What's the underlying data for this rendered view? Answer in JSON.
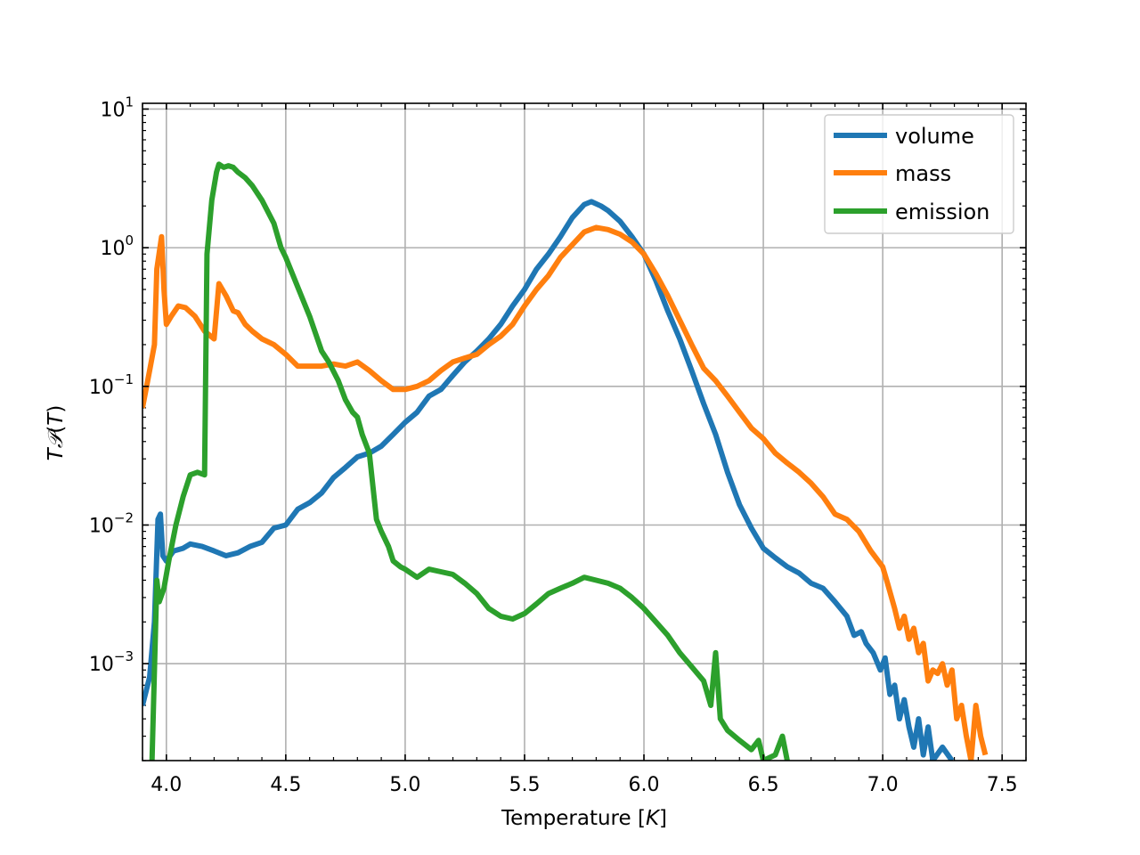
{
  "chart_data": {
    "type": "line",
    "title": "",
    "xlabel_main": "Temperature [",
    "xlabel_var": "K",
    "xlabel_end": "]",
    "ylabel_var1": "T",
    "ylabel_var2": "𝒫",
    "ylabel_paren_open": "(",
    "ylabel_var3": "T",
    "ylabel_paren_close": ")",
    "xlim": [
      3.9,
      7.6
    ],
    "ylim": [
      0.0002,
      11
    ],
    "yscale": "log",
    "grid": true,
    "legend_position": "top-right",
    "x_ticks": [
      {
        "value": 4.0,
        "label": "4.0"
      },
      {
        "value": 4.5,
        "label": "4.5"
      },
      {
        "value": 5.0,
        "label": "5.0"
      },
      {
        "value": 5.5,
        "label": "5.5"
      },
      {
        "value": 6.0,
        "label": "6.0"
      },
      {
        "value": 6.5,
        "label": "6.5"
      },
      {
        "value": 7.0,
        "label": "7.0"
      },
      {
        "value": 7.5,
        "label": "7.5"
      }
    ],
    "y_ticks": [
      {
        "value": 10,
        "base": "10",
        "exp": "1"
      },
      {
        "value": 1,
        "base": "10",
        "exp": "0"
      },
      {
        "value": 0.1,
        "base": "10",
        "exp": "−1"
      },
      {
        "value": 0.01,
        "base": "10",
        "exp": "−2"
      },
      {
        "value": 0.001,
        "base": "10",
        "exp": "−3"
      }
    ],
    "series": [
      {
        "name": "volume",
        "color": "#1f77b4",
        "points": [
          [
            3.9,
            0.0005
          ],
          [
            3.93,
            0.0008
          ],
          [
            3.95,
            0.002
          ],
          [
            3.965,
            0.011
          ],
          [
            3.975,
            0.012
          ],
          [
            3.985,
            0.006
          ],
          [
            4.0,
            0.0055
          ],
          [
            4.03,
            0.0065
          ],
          [
            4.07,
            0.0068
          ],
          [
            4.1,
            0.0073
          ],
          [
            4.15,
            0.007
          ],
          [
            4.2,
            0.0065
          ],
          [
            4.25,
            0.006
          ],
          [
            4.3,
            0.0063
          ],
          [
            4.35,
            0.007
          ],
          [
            4.4,
            0.0075
          ],
          [
            4.45,
            0.0095
          ],
          [
            4.5,
            0.01
          ],
          [
            4.55,
            0.013
          ],
          [
            4.6,
            0.0145
          ],
          [
            4.65,
            0.017
          ],
          [
            4.7,
            0.022
          ],
          [
            4.75,
            0.026
          ],
          [
            4.8,
            0.031
          ],
          [
            4.85,
            0.033
          ],
          [
            4.9,
            0.037
          ],
          [
            4.95,
            0.045
          ],
          [
            5.0,
            0.055
          ],
          [
            5.05,
            0.065
          ],
          [
            5.1,
            0.085
          ],
          [
            5.15,
            0.095
          ],
          [
            5.2,
            0.12
          ],
          [
            5.25,
            0.15
          ],
          [
            5.3,
            0.18
          ],
          [
            5.35,
            0.22
          ],
          [
            5.4,
            0.28
          ],
          [
            5.45,
            0.38
          ],
          [
            5.5,
            0.5
          ],
          [
            5.55,
            0.7
          ],
          [
            5.6,
            0.9
          ],
          [
            5.65,
            1.2
          ],
          [
            5.7,
            1.65
          ],
          [
            5.75,
            2.05
          ],
          [
            5.78,
            2.15
          ],
          [
            5.82,
            2.0
          ],
          [
            5.85,
            1.85
          ],
          [
            5.9,
            1.55
          ],
          [
            5.95,
            1.2
          ],
          [
            6.0,
            0.9
          ],
          [
            6.05,
            0.58
          ],
          [
            6.1,
            0.35
          ],
          [
            6.15,
            0.22
          ],
          [
            6.2,
            0.13
          ],
          [
            6.25,
            0.075
          ],
          [
            6.3,
            0.045
          ],
          [
            6.35,
            0.024
          ],
          [
            6.4,
            0.014
          ],
          [
            6.45,
            0.0095
          ],
          [
            6.5,
            0.0068
          ],
          [
            6.55,
            0.0058
          ],
          [
            6.6,
            0.005
          ],
          [
            6.65,
            0.0045
          ],
          [
            6.7,
            0.0038
          ],
          [
            6.75,
            0.0035
          ],
          [
            6.8,
            0.0028
          ],
          [
            6.85,
            0.0022
          ],
          [
            6.88,
            0.0016
          ],
          [
            6.91,
            0.0017
          ],
          [
            6.93,
            0.0014
          ],
          [
            6.96,
            0.0012
          ],
          [
            6.99,
            0.0009
          ],
          [
            7.01,
            0.0011
          ],
          [
            7.03,
            0.0006
          ],
          [
            7.05,
            0.0007
          ],
          [
            7.07,
            0.0004
          ],
          [
            7.09,
            0.00055
          ],
          [
            7.11,
            0.00035
          ],
          [
            7.13,
            0.00025
          ],
          [
            7.15,
            0.0004
          ],
          [
            7.17,
            0.00022
          ],
          [
            7.19,
            0.00035
          ],
          [
            7.21,
            0.0002
          ],
          [
            7.25,
            0.00025
          ],
          [
            7.29,
            0.0002
          ]
        ]
      },
      {
        "name": "mass",
        "color": "#ff7f0e",
        "points": [
          [
            3.9,
            0.07
          ],
          [
            3.93,
            0.13
          ],
          [
            3.95,
            0.2
          ],
          [
            3.96,
            0.7
          ],
          [
            3.98,
            1.2
          ],
          [
            3.99,
            0.5
          ],
          [
            4.0,
            0.28
          ],
          [
            4.02,
            0.32
          ],
          [
            4.05,
            0.38
          ],
          [
            4.08,
            0.37
          ],
          [
            4.12,
            0.32
          ],
          [
            4.16,
            0.25
          ],
          [
            4.2,
            0.22
          ],
          [
            4.22,
            0.55
          ],
          [
            4.25,
            0.45
          ],
          [
            4.28,
            0.35
          ],
          [
            4.3,
            0.34
          ],
          [
            4.33,
            0.28
          ],
          [
            4.36,
            0.25
          ],
          [
            4.4,
            0.22
          ],
          [
            4.45,
            0.2
          ],
          [
            4.5,
            0.17
          ],
          [
            4.55,
            0.14
          ],
          [
            4.6,
            0.14
          ],
          [
            4.65,
            0.14
          ],
          [
            4.7,
            0.145
          ],
          [
            4.75,
            0.14
          ],
          [
            4.8,
            0.15
          ],
          [
            4.85,
            0.13
          ],
          [
            4.9,
            0.11
          ],
          [
            4.95,
            0.095
          ],
          [
            5.0,
            0.095
          ],
          [
            5.05,
            0.1
          ],
          [
            5.1,
            0.11
          ],
          [
            5.15,
            0.13
          ],
          [
            5.2,
            0.15
          ],
          [
            5.25,
            0.16
          ],
          [
            5.3,
            0.17
          ],
          [
            5.35,
            0.2
          ],
          [
            5.4,
            0.23
          ],
          [
            5.45,
            0.28
          ],
          [
            5.5,
            0.38
          ],
          [
            5.55,
            0.5
          ],
          [
            5.6,
            0.63
          ],
          [
            5.65,
            0.85
          ],
          [
            5.7,
            1.05
          ],
          [
            5.75,
            1.3
          ],
          [
            5.8,
            1.4
          ],
          [
            5.85,
            1.35
          ],
          [
            5.9,
            1.25
          ],
          [
            5.95,
            1.1
          ],
          [
            6.0,
            0.9
          ],
          [
            6.05,
            0.65
          ],
          [
            6.1,
            0.45
          ],
          [
            6.15,
            0.3
          ],
          [
            6.2,
            0.2
          ],
          [
            6.25,
            0.135
          ],
          [
            6.3,
            0.11
          ],
          [
            6.35,
            0.085
          ],
          [
            6.4,
            0.065
          ],
          [
            6.45,
            0.05
          ],
          [
            6.5,
            0.042
          ],
          [
            6.55,
            0.033
          ],
          [
            6.6,
            0.028
          ],
          [
            6.65,
            0.024
          ],
          [
            6.7,
            0.02
          ],
          [
            6.75,
            0.016
          ],
          [
            6.8,
            0.012
          ],
          [
            6.85,
            0.011
          ],
          [
            6.9,
            0.009
          ],
          [
            6.95,
            0.0065
          ],
          [
            7.0,
            0.005
          ],
          [
            7.02,
            0.0038
          ],
          [
            7.05,
            0.0025
          ],
          [
            7.07,
            0.0018
          ],
          [
            7.09,
            0.0022
          ],
          [
            7.11,
            0.0015
          ],
          [
            7.13,
            0.0018
          ],
          [
            7.15,
            0.0012
          ],
          [
            7.17,
            0.0014
          ],
          [
            7.19,
            0.00075
          ],
          [
            7.21,
            0.0009
          ],
          [
            7.23,
            0.00085
          ],
          [
            7.25,
            0.001
          ],
          [
            7.27,
            0.0007
          ],
          [
            7.29,
            0.0009
          ],
          [
            7.31,
            0.0004
          ],
          [
            7.33,
            0.0005
          ],
          [
            7.35,
            0.0003
          ],
          [
            7.37,
            0.0002
          ],
          [
            7.39,
            0.0005
          ],
          [
            7.41,
            0.0003
          ],
          [
            7.43,
            0.00022
          ]
        ]
      },
      {
        "name": "emission",
        "color": "#2ca02c",
        "points": [
          [
            3.94,
            0.0002
          ],
          [
            3.96,
            0.004
          ],
          [
            3.97,
            0.0028
          ],
          [
            3.99,
            0.0035
          ],
          [
            4.01,
            0.0055
          ],
          [
            4.04,
            0.01
          ],
          [
            4.07,
            0.016
          ],
          [
            4.1,
            0.023
          ],
          [
            4.13,
            0.024
          ],
          [
            4.16,
            0.023
          ],
          [
            4.17,
            0.9
          ],
          [
            4.19,
            2.2
          ],
          [
            4.21,
            3.5
          ],
          [
            4.22,
            4.0
          ],
          [
            4.24,
            3.8
          ],
          [
            4.26,
            3.9
          ],
          [
            4.28,
            3.8
          ],
          [
            4.3,
            3.5
          ],
          [
            4.33,
            3.2
          ],
          [
            4.36,
            2.8
          ],
          [
            4.4,
            2.2
          ],
          [
            4.45,
            1.5
          ],
          [
            4.48,
            1.0
          ],
          [
            4.5,
            0.85
          ],
          [
            4.55,
            0.52
          ],
          [
            4.6,
            0.32
          ],
          [
            4.65,
            0.18
          ],
          [
            4.68,
            0.15
          ],
          [
            4.72,
            0.11
          ],
          [
            4.75,
            0.08
          ],
          [
            4.78,
            0.065
          ],
          [
            4.8,
            0.06
          ],
          [
            4.82,
            0.045
          ],
          [
            4.85,
            0.033
          ],
          [
            4.88,
            0.011
          ],
          [
            4.9,
            0.009
          ],
          [
            4.93,
            0.007
          ],
          [
            4.95,
            0.0055
          ],
          [
            4.98,
            0.005
          ],
          [
            5.0,
            0.0048
          ],
          [
            5.05,
            0.0042
          ],
          [
            5.1,
            0.0048
          ],
          [
            5.15,
            0.0046
          ],
          [
            5.2,
            0.0044
          ],
          [
            5.25,
            0.0038
          ],
          [
            5.3,
            0.0032
          ],
          [
            5.35,
            0.0025
          ],
          [
            5.4,
            0.0022
          ],
          [
            5.45,
            0.0021
          ],
          [
            5.5,
            0.0023
          ],
          [
            5.55,
            0.0027
          ],
          [
            5.6,
            0.0032
          ],
          [
            5.65,
            0.0035
          ],
          [
            5.7,
            0.0038
          ],
          [
            5.75,
            0.0042
          ],
          [
            5.8,
            0.004
          ],
          [
            5.85,
            0.0038
          ],
          [
            5.9,
            0.0035
          ],
          [
            5.95,
            0.003
          ],
          [
            6.0,
            0.0025
          ],
          [
            6.05,
            0.002
          ],
          [
            6.1,
            0.0016
          ],
          [
            6.15,
            0.0012
          ],
          [
            6.2,
            0.00095
          ],
          [
            6.25,
            0.00075
          ],
          [
            6.28,
            0.0005
          ],
          [
            6.3,
            0.0012
          ],
          [
            6.32,
            0.0004
          ],
          [
            6.35,
            0.00033
          ],
          [
            6.4,
            0.00028
          ],
          [
            6.45,
            0.00024
          ],
          [
            6.48,
            0.00028
          ],
          [
            6.5,
            0.0002
          ],
          [
            6.55,
            0.00022
          ],
          [
            6.58,
            0.0003
          ],
          [
            6.6,
            0.0002
          ]
        ]
      }
    ]
  }
}
